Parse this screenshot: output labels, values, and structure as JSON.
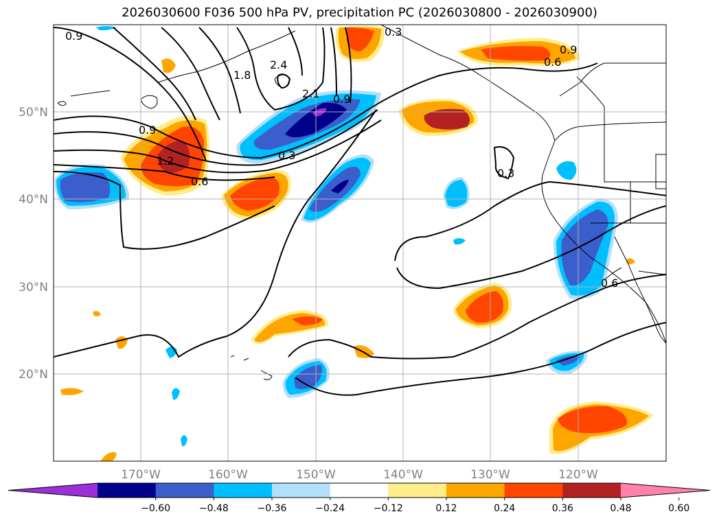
{
  "title": "2026030600 F036 500 hPa PV, precipitation PC (2026030800 - 2026030900)",
  "lat_labels": [
    "50°N",
    "40°N",
    "30°N",
    "20°N"
  ],
  "lon_labels": [
    "170°W",
    "160°W",
    "150°W",
    "140°W",
    "130°W",
    "120°W"
  ],
  "contour_labels": [
    "0.9",
    "1.8",
    "2.4",
    "2.1",
    "0.3",
    "0.9",
    "0.6",
    "0.9",
    "0.9",
    "1.2",
    "0.6",
    "0.3",
    "0.3",
    "0.6"
  ],
  "colorbar": {
    "ticks": [
      "−0.60",
      "−0.48",
      "−0.36",
      "−0.24",
      "−0.12",
      "0.12",
      "0.24",
      "0.36",
      "0.48",
      "0.60"
    ],
    "colors": [
      "#9b30d9",
      "#00008b",
      "#3a5fcd",
      "#00bfff",
      "#b0e0fa",
      "#ffffff",
      "#ffec8b",
      "#ffa500",
      "#ff4500",
      "#b22222",
      "#ff82ab"
    ]
  }
}
